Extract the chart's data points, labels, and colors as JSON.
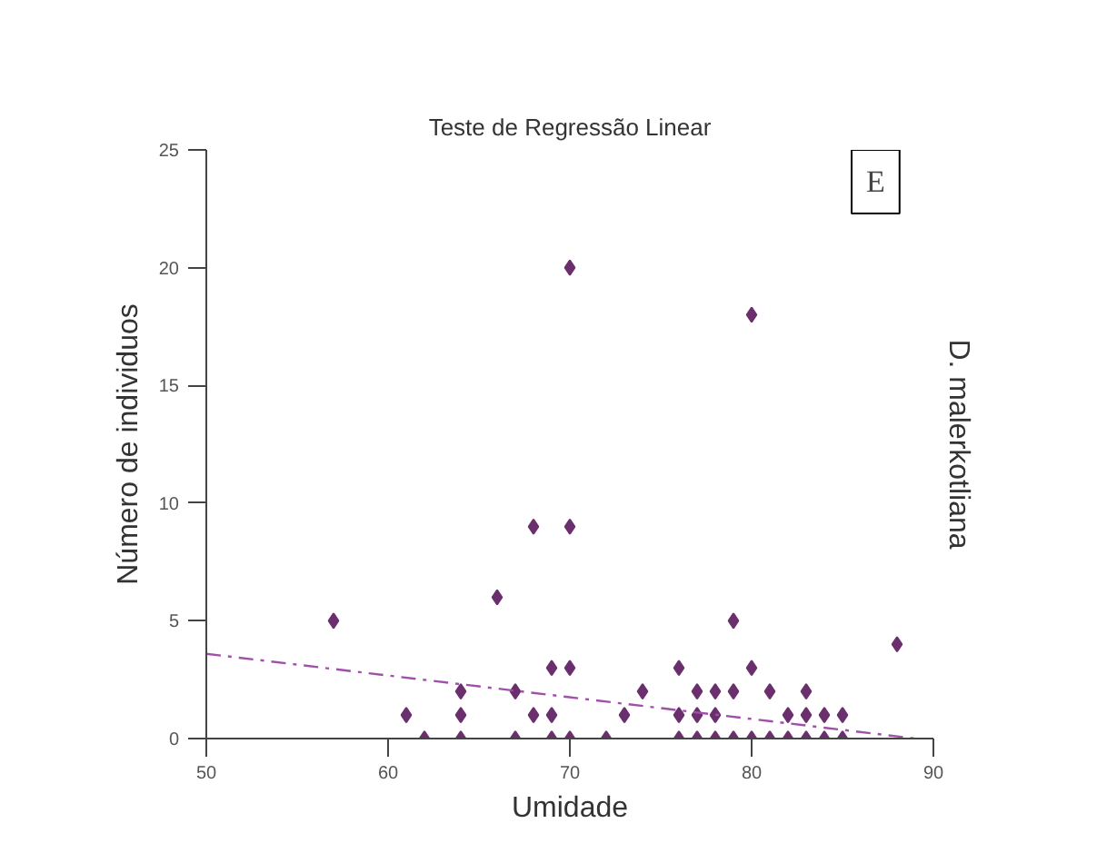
{
  "chart_data": {
    "type": "scatter",
    "title": "Teste de Regressão Linear",
    "xlabel": "Umidade",
    "ylabel": "Número de individuos",
    "annotations": [
      "E",
      "D. malerkotliana"
    ],
    "xlim": [
      50,
      90
    ],
    "ylim": [
      0,
      25
    ],
    "xticks": [
      50,
      60,
      70,
      80,
      90
    ],
    "yticks": [
      0,
      5,
      10,
      15,
      20,
      25
    ],
    "grid": false,
    "marker": "diamond",
    "series": [
      {
        "color": "#6b2f6e",
        "x": [
          57,
          61,
          62,
          64,
          64,
          64,
          66,
          67,
          67,
          68,
          68,
          69,
          69,
          69,
          70,
          70,
          70,
          70,
          72,
          73,
          74,
          76,
          76,
          76,
          77,
          77,
          77,
          78,
          78,
          78,
          79,
          79,
          79,
          80,
          80,
          80,
          81,
          81,
          82,
          82,
          83,
          83,
          83,
          84,
          84,
          85,
          85,
          88
        ],
        "values": [
          5,
          1,
          0,
          2,
          1,
          0,
          6,
          2,
          0,
          9,
          1,
          3,
          1,
          0,
          20,
          9,
          3,
          0,
          0,
          1,
          2,
          3,
          1,
          0,
          2,
          1,
          0,
          2,
          1,
          0,
          5,
          2,
          0,
          18,
          3,
          0,
          2,
          0,
          1,
          0,
          2,
          1,
          0,
          1,
          0,
          1,
          0,
          4
        ]
      },
      {
        "type": "line",
        "color": "#a050a8",
        "line_style": "dashed",
        "marker": "none",
        "x": [
          50,
          89
        ],
        "values": [
          3.6,
          0
        ]
      }
    ]
  }
}
